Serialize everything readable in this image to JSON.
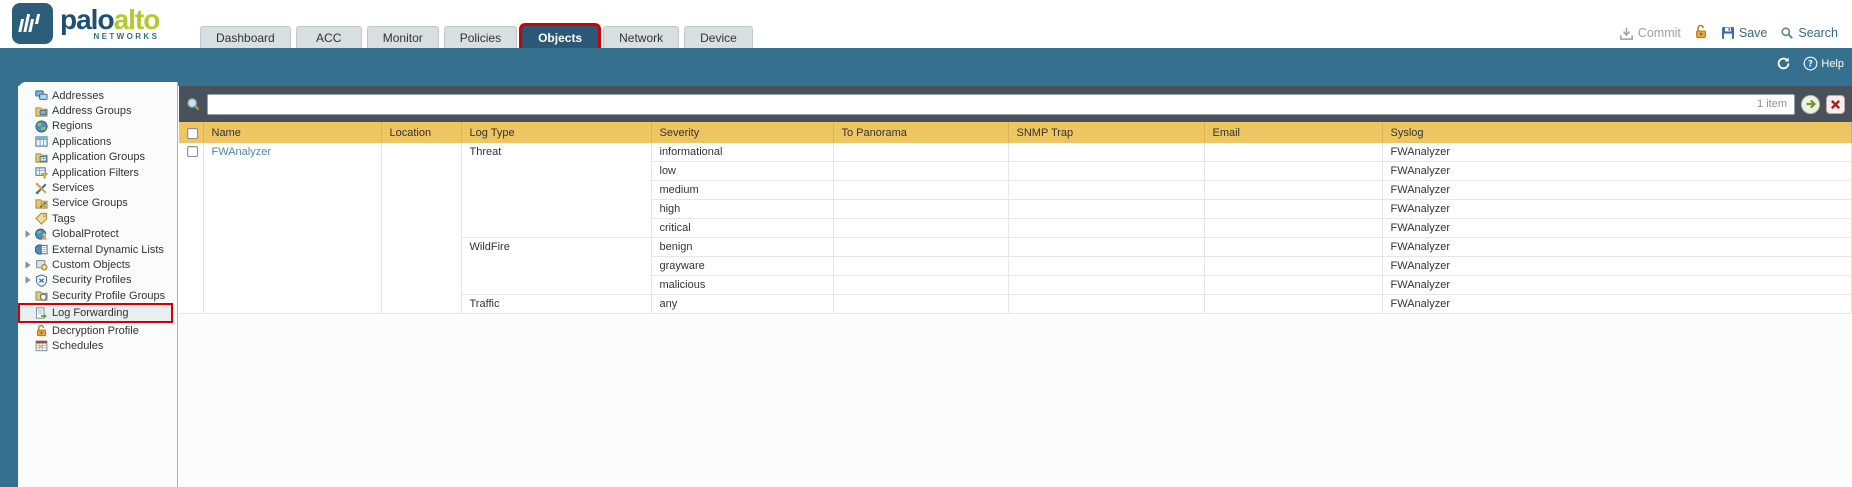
{
  "brand": {
    "word1": "palo",
    "word2": "alto",
    "sub": "NETWORKS"
  },
  "tabs": {
    "items": [
      {
        "label": "Dashboard",
        "active": false,
        "annotated": false
      },
      {
        "label": "ACC",
        "active": false,
        "annotated": false
      },
      {
        "label": "Monitor",
        "active": false,
        "annotated": false
      },
      {
        "label": "Policies",
        "active": false,
        "annotated": false
      },
      {
        "label": "Objects",
        "active": true,
        "annotated": true
      },
      {
        "label": "Network",
        "active": false,
        "annotated": false
      },
      {
        "label": "Device",
        "active": false,
        "annotated": false
      }
    ]
  },
  "header_actions": {
    "commit_label": "Commit",
    "save_label": "Save",
    "search_label": "Search",
    "icons": [
      "commit-icon",
      "lock-icon",
      "save-icon",
      "search-icon"
    ]
  },
  "utility_bar": {
    "help_label": "Help",
    "icons": [
      "refresh-icon",
      "help-icon"
    ]
  },
  "search": {
    "value": "",
    "placeholder": "",
    "count": "1 item",
    "icons": [
      "search-magnifier-icon",
      "apply-filter-arrow-icon",
      "clear-filter-x-icon"
    ]
  },
  "sidebar": {
    "items": [
      {
        "label": "Addresses",
        "icon": "addresses-icon",
        "expandable": false,
        "selected": false,
        "annotated": false
      },
      {
        "label": "Address Groups",
        "icon": "address-groups-icon",
        "expandable": false,
        "selected": false,
        "annotated": false
      },
      {
        "label": "Regions",
        "icon": "regions-icon",
        "expandable": false,
        "selected": false,
        "annotated": false
      },
      {
        "label": "Applications",
        "icon": "applications-icon",
        "expandable": false,
        "selected": false,
        "annotated": false
      },
      {
        "label": "Application Groups",
        "icon": "application-groups-icon",
        "expandable": false,
        "selected": false,
        "annotated": false
      },
      {
        "label": "Application Filters",
        "icon": "application-filters-icon",
        "expandable": false,
        "selected": false,
        "annotated": false
      },
      {
        "label": "Services",
        "icon": "services-icon",
        "expandable": false,
        "selected": false,
        "annotated": false
      },
      {
        "label": "Service Groups",
        "icon": "service-groups-icon",
        "expandable": false,
        "selected": false,
        "annotated": false
      },
      {
        "label": "Tags",
        "icon": "tags-icon",
        "expandable": false,
        "selected": false,
        "annotated": false
      },
      {
        "label": "GlobalProtect",
        "icon": "globalprotect-icon",
        "expandable": true,
        "selected": false,
        "annotated": false
      },
      {
        "label": "External Dynamic Lists",
        "icon": "external-dynamic-lists-icon",
        "expandable": false,
        "selected": false,
        "annotated": false
      },
      {
        "label": "Custom Objects",
        "icon": "custom-objects-icon",
        "expandable": true,
        "selected": false,
        "annotated": false
      },
      {
        "label": "Security Profiles",
        "icon": "security-profiles-icon",
        "expandable": true,
        "selected": false,
        "annotated": false
      },
      {
        "label": "Security Profile Groups",
        "icon": "security-profile-groups-icon",
        "expandable": false,
        "selected": false,
        "annotated": false
      },
      {
        "label": "Log Forwarding",
        "icon": "log-forwarding-icon",
        "expandable": false,
        "selected": true,
        "annotated": true
      },
      {
        "label": "Decryption Profile",
        "icon": "decryption-profile-icon",
        "expandable": false,
        "selected": false,
        "annotated": false
      },
      {
        "label": "Schedules",
        "icon": "schedules-icon",
        "expandable": false,
        "selected": false,
        "annotated": false
      }
    ]
  },
  "table": {
    "columns": [
      "Name",
      "Location",
      "Log Type",
      "Severity",
      "To Panorama",
      "SNMP Trap",
      "Email",
      "Syslog"
    ],
    "rows": [
      {
        "name": "FWAnalyzer",
        "location": "",
        "groups": [
          {
            "log_type": "Threat",
            "entries": [
              {
                "severity": "informational",
                "to_panorama": "",
                "snmp_trap": "",
                "email": "",
                "syslog": "FWAnalyzer"
              },
              {
                "severity": "low",
                "to_panorama": "",
                "snmp_trap": "",
                "email": "",
                "syslog": "FWAnalyzer"
              },
              {
                "severity": "medium",
                "to_panorama": "",
                "snmp_trap": "",
                "email": "",
                "syslog": "FWAnalyzer"
              },
              {
                "severity": "high",
                "to_panorama": "",
                "snmp_trap": "",
                "email": "",
                "syslog": "FWAnalyzer"
              },
              {
                "severity": "critical",
                "to_panorama": "",
                "snmp_trap": "",
                "email": "",
                "syslog": "FWAnalyzer"
              }
            ]
          },
          {
            "log_type": "WildFire",
            "entries": [
              {
                "severity": "benign",
                "to_panorama": "",
                "snmp_trap": "",
                "email": "",
                "syslog": "FWAnalyzer"
              },
              {
                "severity": "grayware",
                "to_panorama": "",
                "snmp_trap": "",
                "email": "",
                "syslog": "FWAnalyzer"
              },
              {
                "severity": "malicious",
                "to_panorama": "",
                "snmp_trap": "",
                "email": "",
                "syslog": "FWAnalyzer"
              }
            ]
          },
          {
            "log_type": "Traffic",
            "entries": [
              {
                "severity": "any",
                "to_panorama": "",
                "snmp_trap": "",
                "email": "",
                "syslog": "FWAnalyzer"
              }
            ]
          }
        ]
      }
    ]
  },
  "colors": {
    "band_teal": "#35708e",
    "header_gold": "#edc561",
    "annotation_red": "#d40000",
    "link_blue": "#4d87ad",
    "brand_green": "#b1ca2f",
    "brand_blue": "#1f4f75",
    "search_strip_gray": "#49525b",
    "active_tab_blue": "#2b5876"
  }
}
